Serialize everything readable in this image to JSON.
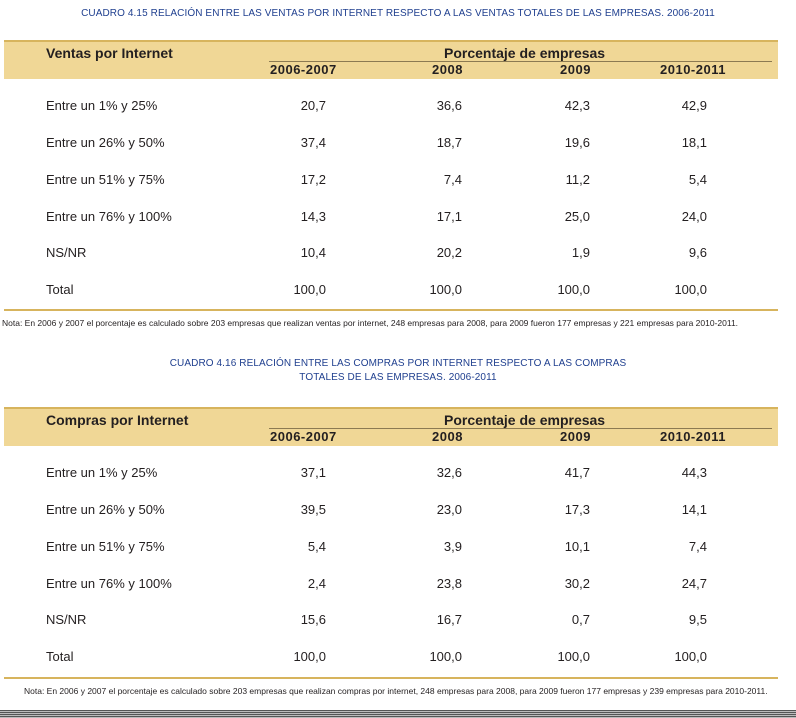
{
  "table1": {
    "title": "CUADRO 4.15 RELACIÓN ENTRE LAS VENTAS POR INTERNET RESPECTO A LAS VENTAS TOTALES DE LAS EMPRESAS. 2006-2011",
    "row_header": "Ventas por Internet",
    "group_header": "Porcentaje de empresas",
    "years": [
      "2006-2007",
      "2008",
      "2009",
      "2010-2011"
    ],
    "rows": [
      {
        "label": "Entre un 1% y 25%",
        "values": [
          "20,7",
          "36,6",
          "42,3",
          "42,9"
        ]
      },
      {
        "label": "Entre un 26% y 50%",
        "values": [
          "37,4",
          "18,7",
          "19,6",
          "18,1"
        ]
      },
      {
        "label": "Entre un 51% y 75%",
        "values": [
          "17,2",
          "7,4",
          "11,2",
          "5,4"
        ]
      },
      {
        "label": "Entre un 76% y 100%",
        "values": [
          "14,3",
          "17,1",
          "25,0",
          "24,0"
        ]
      },
      {
        "label": "NS/NR",
        "values": [
          "10,4",
          "20,2",
          "1,9",
          "9,6"
        ]
      },
      {
        "label": "Total",
        "values": [
          "100,0",
          "100,0",
          "100,0",
          "100,0"
        ]
      }
    ],
    "note": "Nota: En 2006 y 2007 el porcentaje es calculado sobre 203 empresas que realizan ventas por internet, 248 empresas para 2008, para 2009 fueron 177 empresas y 221 empresas para 2010-2011."
  },
  "table2": {
    "title_line1": "CUADRO 4.16 RELACIÓN ENTRE LAS COMPRAS POR INTERNET RESPECTO A LAS COMPRAS",
    "title_line2": "TOTALES DE LAS EMPRESAS. 2006-2011",
    "row_header": "Compras por Internet",
    "group_header": "Porcentaje de empresas",
    "years": [
      "2006-2007",
      "2008",
      "2009",
      "2010-2011"
    ],
    "rows": [
      {
        "label": "Entre un 1% y 25%",
        "values": [
          "37,1",
          "32,6",
          "41,7",
          "44,3"
        ]
      },
      {
        "label": "Entre un 26% y 50%",
        "values": [
          "39,5",
          "23,0",
          "17,3",
          "14,1"
        ]
      },
      {
        "label": "Entre un 51% y 75%",
        "values": [
          "5,4",
          "3,9",
          "10,1",
          "7,4"
        ]
      },
      {
        "label": "Entre un 76% y 100%",
        "values": [
          "2,4",
          "23,8",
          "30,2",
          "24,7"
        ]
      },
      {
        "label": "NS/NR",
        "values": [
          "15,6",
          "16,7",
          "0,7",
          "9,5"
        ]
      },
      {
        "label": "Total",
        "values": [
          "100,0",
          "100,0",
          "100,0",
          "100,0"
        ]
      }
    ],
    "note": "Nota: En 2006 y 2007 el porcentaje es calculado sobre 203 empresas que realizan compras por internet, 248 empresas para 2008, para 2009 fueron 177 empresas y 239 empresas para 2010-2011."
  },
  "colors": {
    "title": "#1f3f8f",
    "header_bg": "#f0d796",
    "rule": "#d7b45d"
  }
}
